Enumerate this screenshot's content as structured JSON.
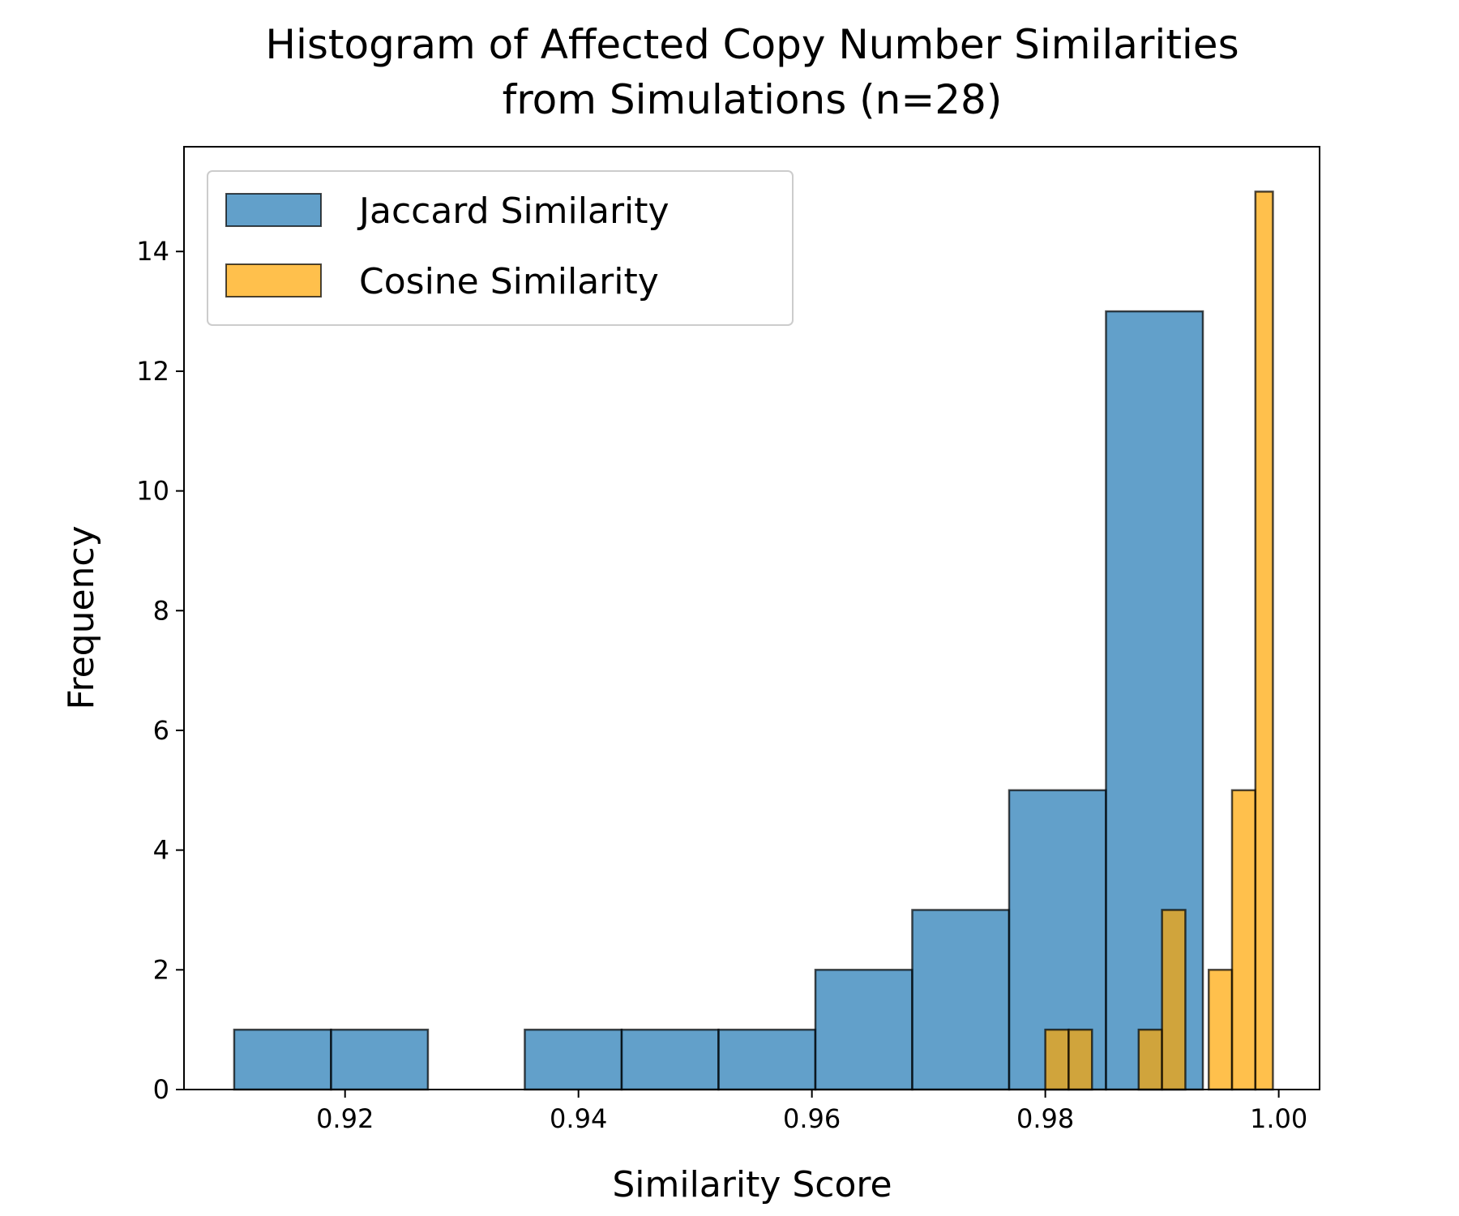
{
  "chart_data": {
    "type": "bar",
    "title": "Histogram of Affected Copy Number Similarities\nfrom Simulations (n=28)",
    "title_lines": [
      "Histogram of Affected Copy Number Similarities",
      "from Simulations (n=28)"
    ],
    "xlabel": "Similarity Score",
    "ylabel": "Frequency",
    "xlim": [
      0.9062,
      1.0035
    ],
    "ylim": [
      0,
      15.75
    ],
    "xticks": [
      0.92,
      0.94,
      0.96,
      0.98,
      1.0
    ],
    "xtick_labels": [
      "0.92",
      "0.94",
      "0.96",
      "0.98",
      "1.00"
    ],
    "yticks": [
      0,
      2,
      4,
      6,
      8,
      10,
      12,
      14
    ],
    "ytick_labels": [
      "0",
      "2",
      "4",
      "6",
      "8",
      "10",
      "12",
      "14"
    ],
    "grid": false,
    "legend_position": "upper-left",
    "series": [
      {
        "name": "Jaccard Similarity",
        "color": "#1f77b4",
        "alpha": 0.7,
        "bin_edges": [
          0.9105,
          0.9188,
          0.9271,
          0.9354,
          0.9437,
          0.952,
          0.9603,
          0.9686,
          0.9769,
          0.9852,
          0.9935
        ],
        "counts": [
          1,
          1,
          0,
          1,
          1,
          1,
          2,
          3,
          5,
          13
        ]
      },
      {
        "name": "Cosine Similarity",
        "color": "#ffa500",
        "alpha": 0.7,
        "bin_edges": [
          0.98,
          0.982,
          0.984,
          0.986,
          0.988,
          0.99,
          0.992,
          0.994,
          0.996,
          0.998,
          0.9995
        ],
        "counts": [
          1,
          1,
          0,
          0,
          1,
          3,
          0,
          2,
          5,
          15
        ]
      }
    ]
  }
}
